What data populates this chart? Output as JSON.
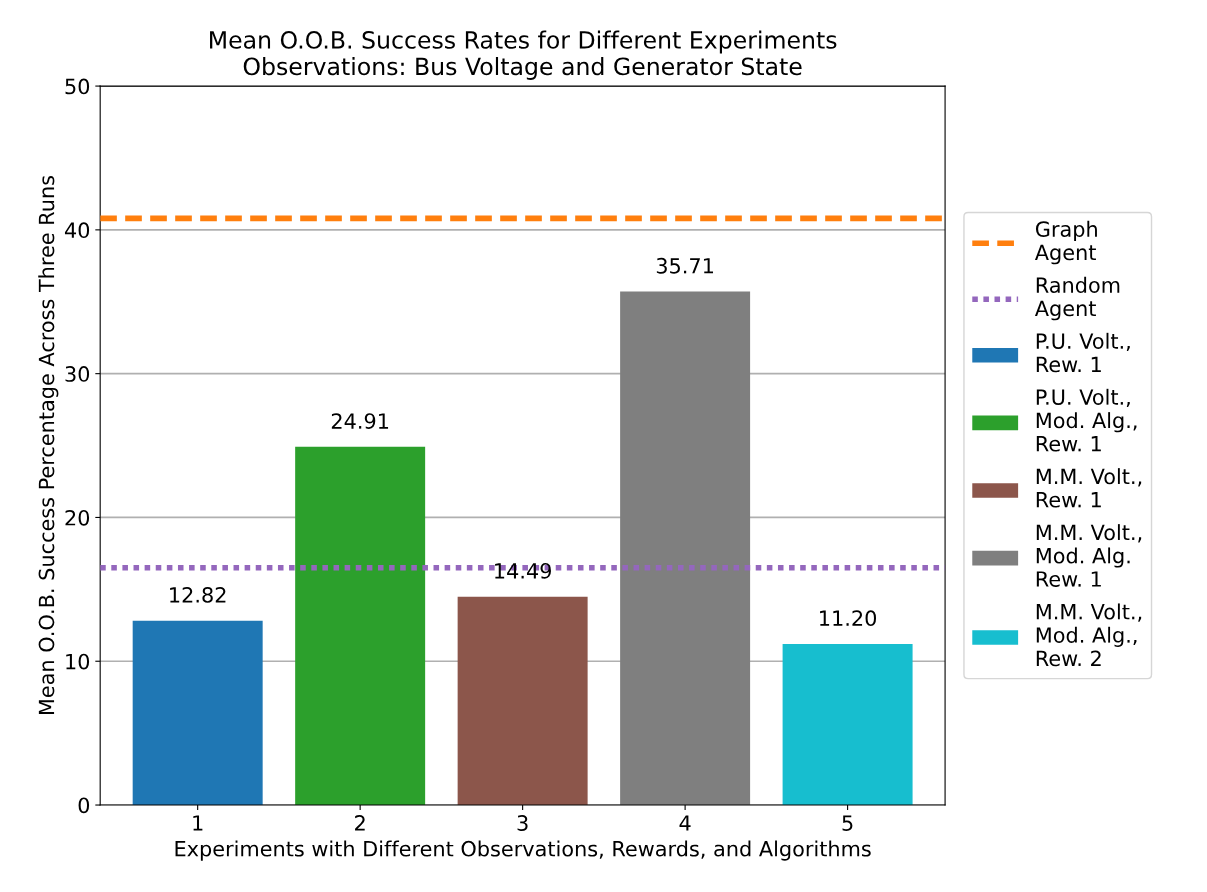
{
  "chart_data": {
    "type": "bar",
    "title": "Mean O.O.B. Success Rates for Different Experiments\nObservations: Bus Voltage and Generator State",
    "xlabel": "Experiments with Different Observations, Rewards, and Algorithms",
    "ylabel": "Mean O.O.B. Success Percentage Across Three Runs",
    "categories": [
      "1",
      "2",
      "3",
      "4",
      "5"
    ],
    "series": [
      {
        "name": "P.U. Volt.,\nRew. 1",
        "color": "#1f77b4",
        "values": [
          12.82,
          null,
          null,
          null,
          null
        ],
        "value_labels": [
          "12.82",
          null,
          null,
          null,
          null
        ]
      },
      {
        "name": "P.U. Volt.,\nMod. Alg.,\nRew. 1",
        "color": "#2ca02c",
        "values": [
          null,
          24.91,
          null,
          null,
          null
        ],
        "value_labels": [
          null,
          "24.91",
          null,
          null,
          null
        ]
      },
      {
        "name": "M.M. Volt.,\nRew. 1",
        "color": "#8c564b",
        "values": [
          null,
          null,
          14.49,
          null,
          null
        ],
        "value_labels": [
          null,
          null,
          "14.49",
          null,
          null
        ]
      },
      {
        "name": "M.M. Volt.,\nMod. Alg.\nRew. 1",
        "color": "#7f7f7f",
        "values": [
          null,
          null,
          null,
          35.71,
          null
        ],
        "value_labels": [
          null,
          null,
          null,
          "35.71",
          null
        ]
      },
      {
        "name": "M.M. Volt.,\nMod. Alg.,\nRew. 2",
        "color": "#17becf",
        "values": [
          null,
          null,
          null,
          null,
          11.2
        ],
        "value_labels": [
          null,
          null,
          null,
          null,
          "11.20"
        ]
      }
    ],
    "ref_lines": [
      {
        "axis": "y",
        "value": 40.8,
        "label": "Graph\nAgent",
        "color": "#ff7f0e",
        "line_style": "dashed"
      },
      {
        "axis": "y",
        "value": 16.5,
        "label": "Random\nAgent",
        "color": "#9467bd",
        "line_style": "dotted"
      }
    ],
    "ylim": [
      0,
      50
    ],
    "yticks": [
      0,
      10,
      20,
      30,
      40,
      50
    ],
    "grid": "y",
    "legend": "right"
  }
}
